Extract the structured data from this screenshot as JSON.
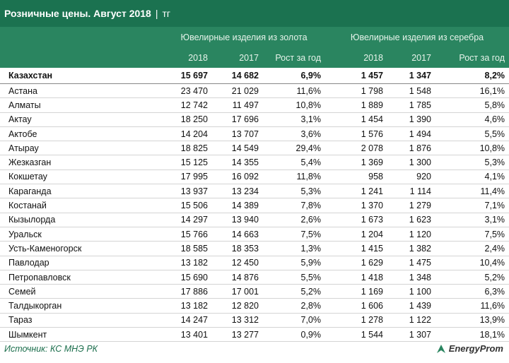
{
  "title": "Розничные цены. Август 2018",
  "unit": "тг",
  "groups": [
    "Ювелирные изделия из золота",
    "Ювелирные изделия из серебра"
  ],
  "columns": [
    "2018",
    "2017",
    "Рост за год",
    "2018",
    "2017",
    "Рост за год"
  ],
  "rows": [
    [
      "Казахстан",
      "15 697",
      "14 682",
      "6,9%",
      "1 457",
      "1 347",
      "8,2%"
    ],
    [
      "Астана",
      "23 470",
      "21 029",
      "11,6%",
      "1 798",
      "1 548",
      "16,1%"
    ],
    [
      "Алматы",
      "12 742",
      "11 497",
      "10,8%",
      "1 889",
      "1 785",
      "5,8%"
    ],
    [
      "Актау",
      "18 250",
      "17 696",
      "3,1%",
      "1 454",
      "1 390",
      "4,6%"
    ],
    [
      "Актобе",
      "14 204",
      "13 707",
      "3,6%",
      "1 576",
      "1 494",
      "5,5%"
    ],
    [
      "Атырау",
      "18 825",
      "14 549",
      "29,4%",
      "2 078",
      "1 876",
      "10,8%"
    ],
    [
      "Жезказган",
      "15 125",
      "14 355",
      "5,4%",
      "1 369",
      "1 300",
      "5,3%"
    ],
    [
      "Кокшетау",
      "17 995",
      "16 092",
      "11,8%",
      "958",
      "920",
      "4,1%"
    ],
    [
      "Караганда",
      "13 937",
      "13 234",
      "5,3%",
      "1 241",
      "1 114",
      "11,4%"
    ],
    [
      "Костанай",
      "15 506",
      "14 389",
      "7,8%",
      "1 370",
      "1 279",
      "7,1%"
    ],
    [
      "Кызылорда",
      "14 297",
      "13 940",
      "2,6%",
      "1 673",
      "1 623",
      "3,1%"
    ],
    [
      "Уральск",
      "15 766",
      "14 663",
      "7,5%",
      "1 204",
      "1 120",
      "7,5%"
    ],
    [
      "Усть-Каменогорск",
      "18 585",
      "18 353",
      "1,3%",
      "1 415",
      "1 382",
      "2,4%"
    ],
    [
      "Павлодар",
      "13 182",
      "12 450",
      "5,9%",
      "1 629",
      "1 475",
      "10,4%"
    ],
    [
      "Петропавловск",
      "15 690",
      "14 876",
      "5,5%",
      "1 418",
      "1 348",
      "5,2%"
    ],
    [
      "Семей",
      "17 886",
      "17 001",
      "5,2%",
      "1 169",
      "1 100",
      "6,3%"
    ],
    [
      "Талдыкорган",
      "13 182",
      "12 820",
      "2,8%",
      "1 606",
      "1 439",
      "11,6%"
    ],
    [
      "Тараз",
      "14 247",
      "13 312",
      "7,0%",
      "1 278",
      "1 122",
      "13,9%"
    ],
    [
      "Шымкент",
      "13 401",
      "13 277",
      "0,9%",
      "1 544",
      "1 307",
      "18,1%"
    ]
  ],
  "source": "Источник: КС МНЭ РК",
  "logo": "EnergyProm"
}
